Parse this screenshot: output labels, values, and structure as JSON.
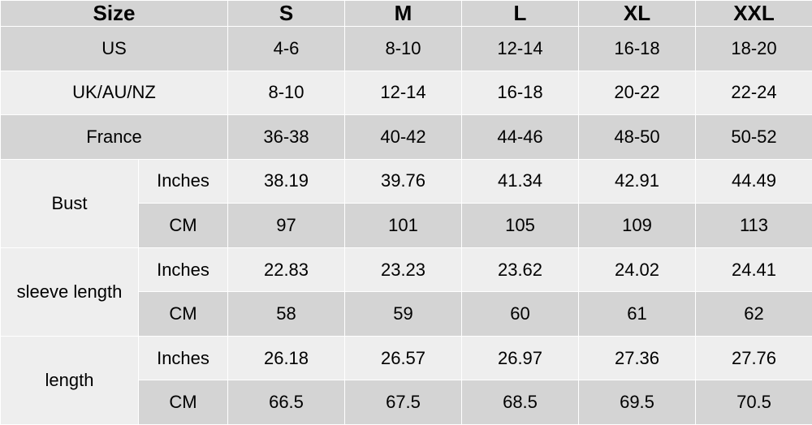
{
  "table": {
    "type": "table",
    "background_color": "#ffffff",
    "border_color": "#ffffff",
    "row_colors": {
      "light": "#d4d4d4",
      "dark": "#eeeeee"
    },
    "header_fontsize": 26,
    "cell_fontsize": 22,
    "text_color": "#000000",
    "col_widths": {
      "label1": 170,
      "label2": 110,
      "size": 144
    },
    "header": {
      "label": "Size",
      "sizes": [
        "S",
        "M",
        "L",
        "XL",
        "XXL"
      ]
    },
    "region_rows": [
      {
        "label": "US",
        "values": [
          "4-6",
          "8-10",
          "12-14",
          "16-18",
          "18-20"
        ],
        "color": "light"
      },
      {
        "label": "UK/AU/NZ",
        "values": [
          "8-10",
          "12-14",
          "16-18",
          "20-22",
          "22-24"
        ],
        "color": "dark"
      },
      {
        "label": "France",
        "values": [
          "36-38",
          "40-42",
          "44-46",
          "48-50",
          "50-52"
        ],
        "color": "light"
      }
    ],
    "measure_groups": [
      {
        "label": "Bust",
        "rows": [
          {
            "unit": "Inches",
            "values": [
              "38.19",
              "39.76",
              "41.34",
              "42.91",
              "44.49"
            ],
            "color": "dark"
          },
          {
            "unit": "CM",
            "values": [
              "97",
              "101",
              "105",
              "109",
              "113"
            ],
            "color": "light"
          }
        ]
      },
      {
        "label": "sleeve length",
        "rows": [
          {
            "unit": "Inches",
            "values": [
              "22.83",
              "23.23",
              "23.62",
              "24.02",
              "24.41"
            ],
            "color": "dark"
          },
          {
            "unit": "CM",
            "values": [
              "58",
              "59",
              "60",
              "61",
              "62"
            ],
            "color": "light"
          }
        ]
      },
      {
        "label": "length",
        "rows": [
          {
            "unit": "Inches",
            "values": [
              "26.18",
              "26.57",
              "26.97",
              "27.36",
              "27.76"
            ],
            "color": "dark"
          },
          {
            "unit": "CM",
            "values": [
              "66.5",
              "67.5",
              "68.5",
              "69.5",
              "70.5"
            ],
            "color": "light"
          }
        ]
      }
    ]
  }
}
